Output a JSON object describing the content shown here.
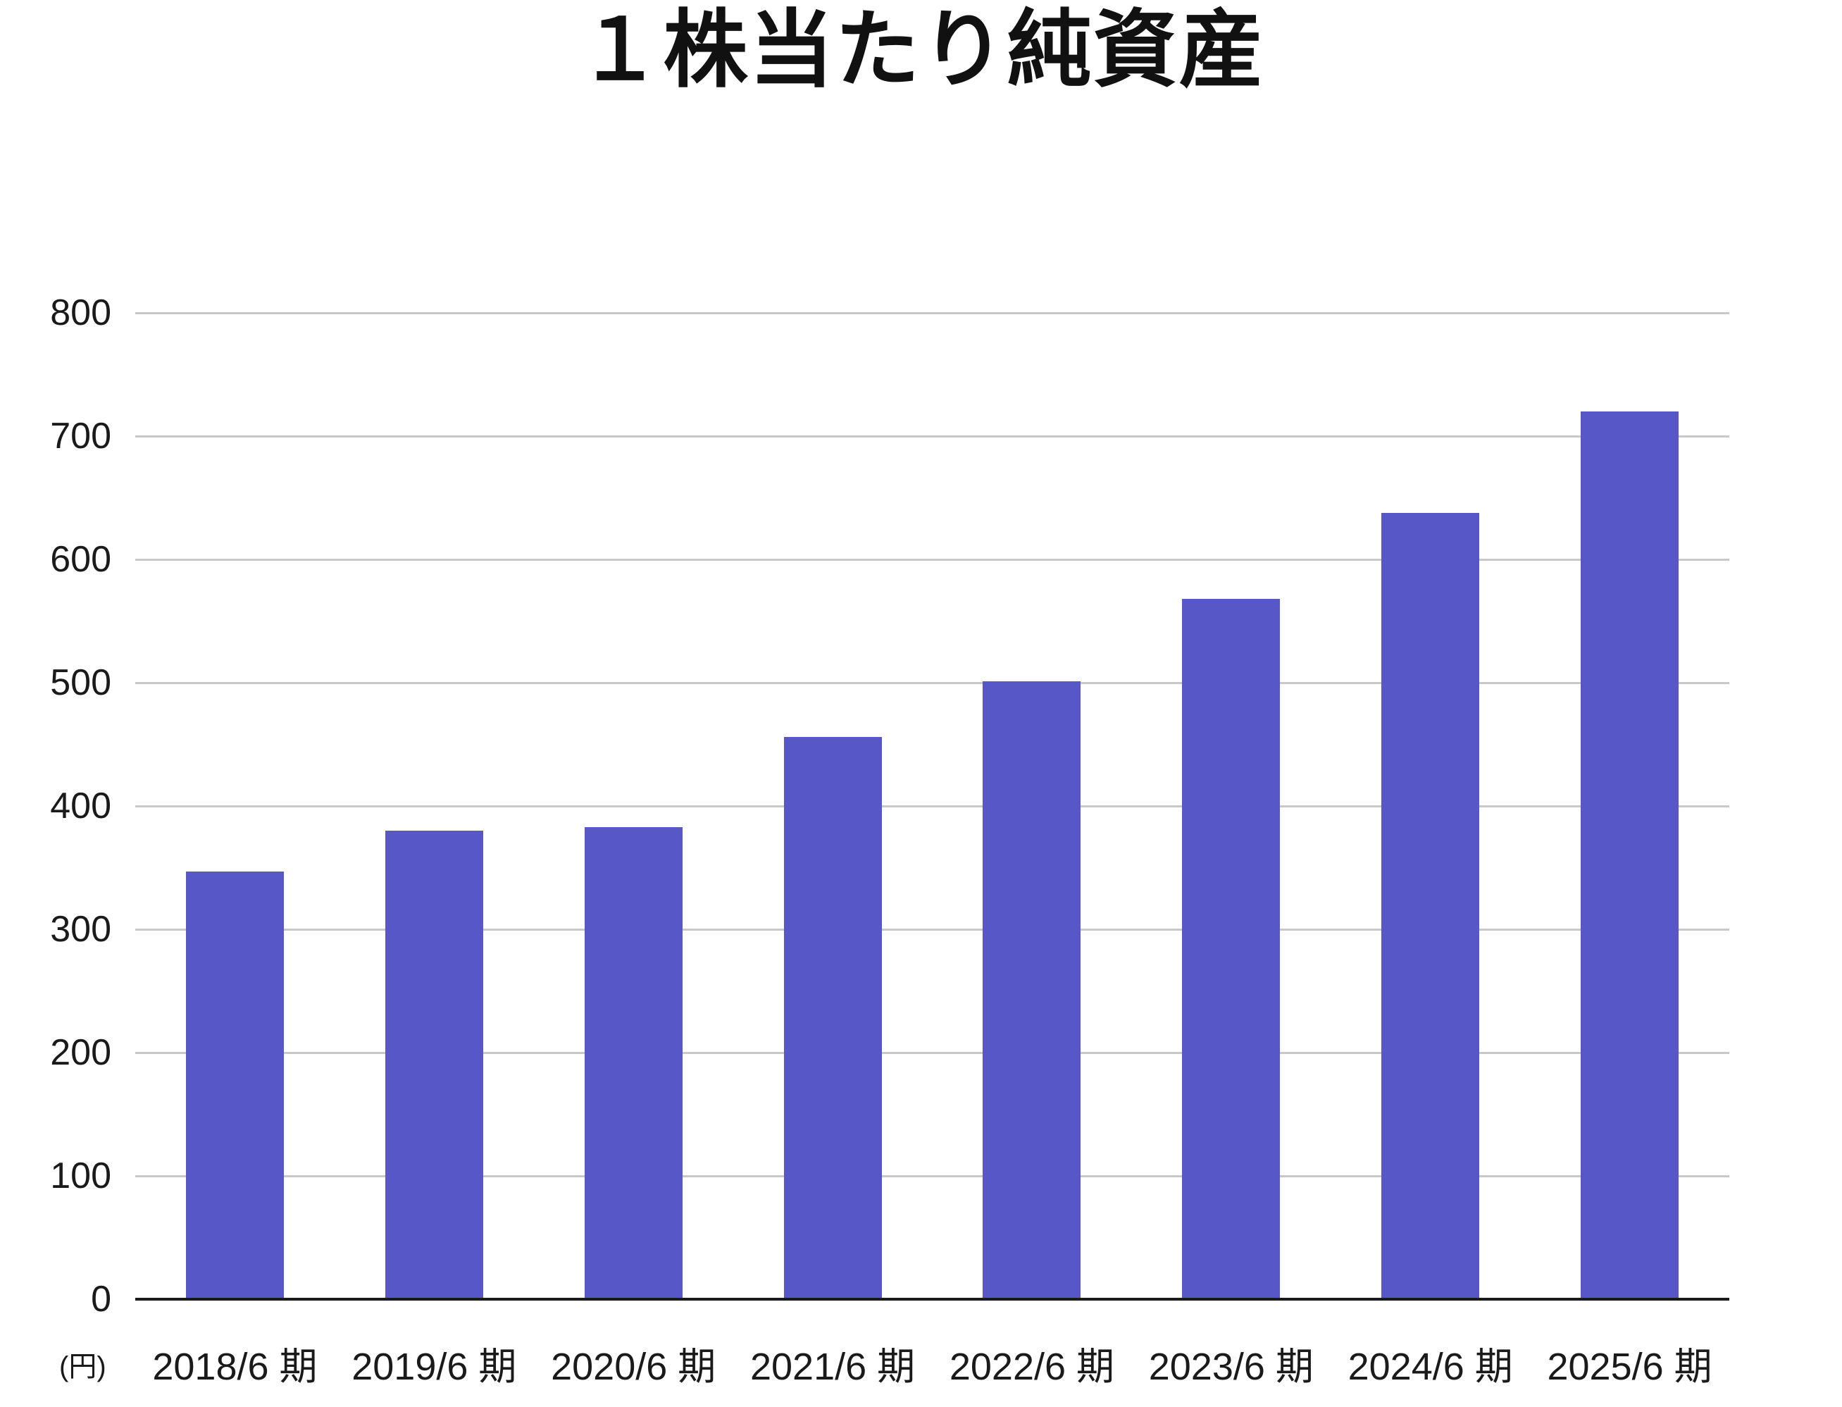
{
  "chart_data": {
    "type": "bar",
    "title": "１株当たり純資産",
    "categories": [
      "2018/6 期",
      "2019/6 期",
      "2020/6 期",
      "2021/6 期",
      "2022/6 期",
      "2023/6 期",
      "2024/6 期",
      "2025/6 期"
    ],
    "values": [
      347,
      380,
      383,
      456,
      501,
      568,
      638,
      720
    ],
    "xlabel": "",
    "ylabel": "(円)",
    "ylim": [
      0,
      800
    ],
    "yticks": [
      0,
      100,
      200,
      300,
      400,
      500,
      600,
      700,
      800
    ],
    "grid": true,
    "legend_position": "none",
    "colors": {
      "bar_fill": "#5757C7",
      "gridline": "#C8C8C8",
      "zero_axis": "#1A1A1A",
      "text": "#1A1A1A",
      "background": "#FFFFFF"
    }
  }
}
